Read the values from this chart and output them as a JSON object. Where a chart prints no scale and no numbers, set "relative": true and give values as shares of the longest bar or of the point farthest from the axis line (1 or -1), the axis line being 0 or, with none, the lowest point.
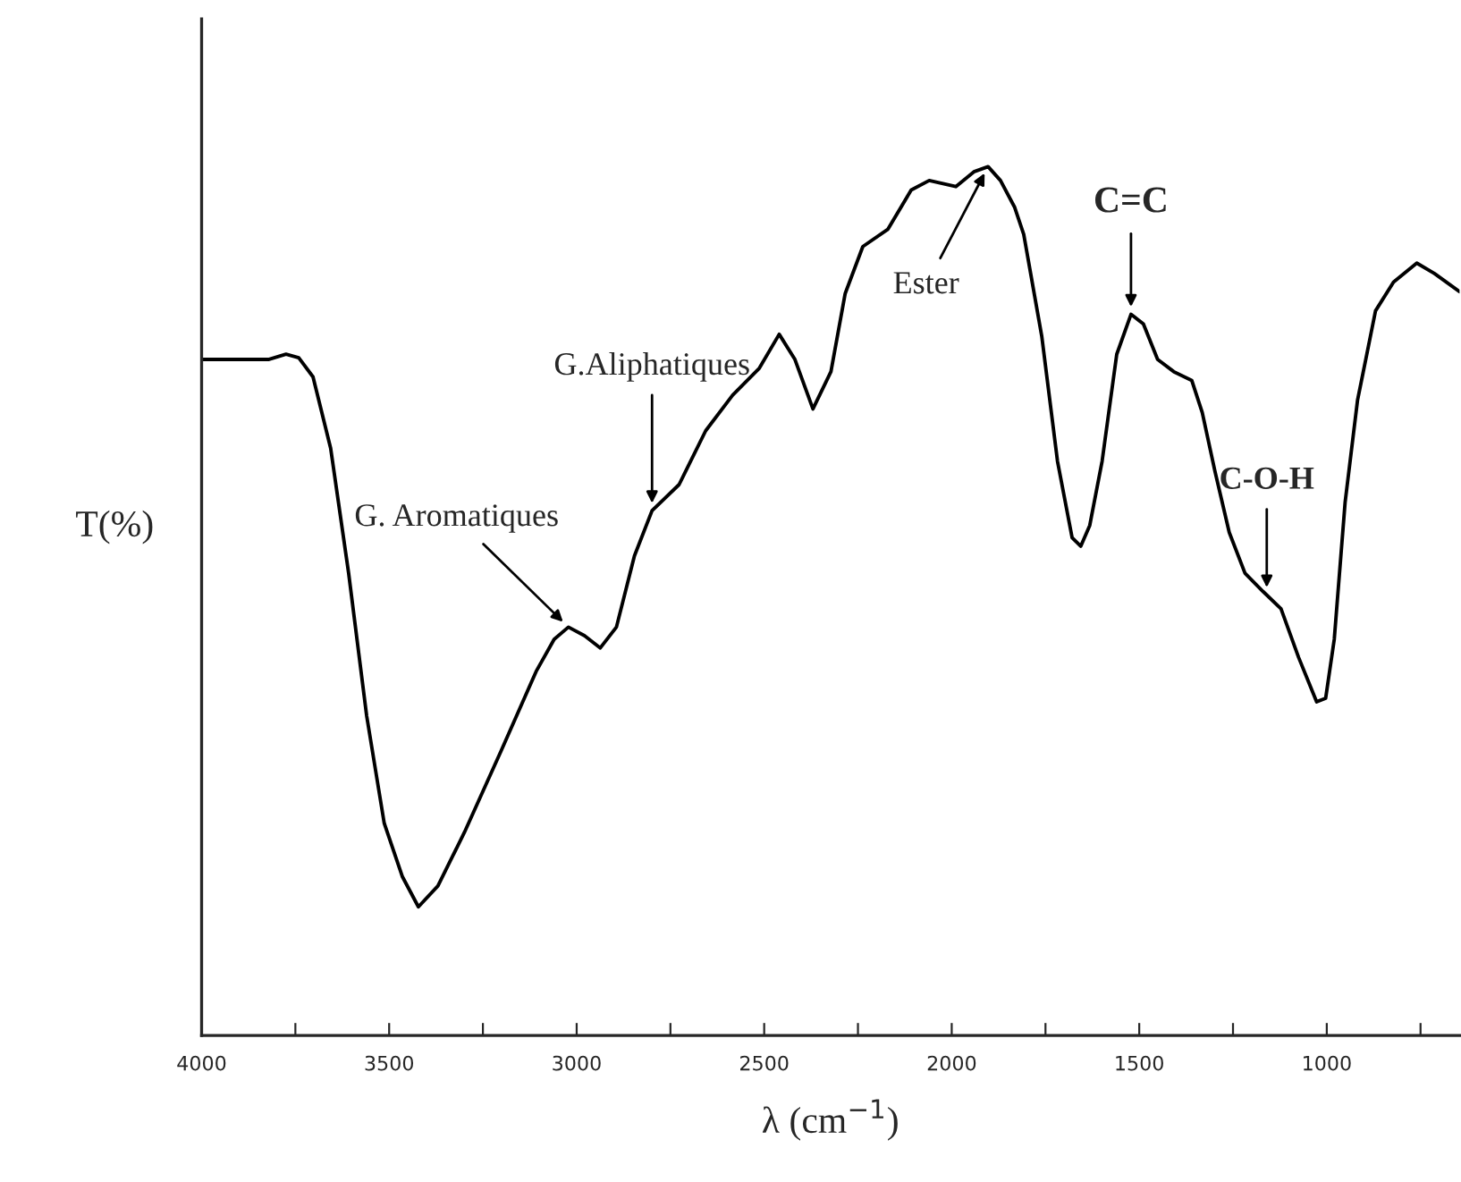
{
  "chart_data": {
    "type": "line",
    "relative": true,
    "xlabel": "λ (cm$^{−1}$)",
    "ylabel": "T(%)",
    "x": [
      4000,
      3822,
      3775,
      3741,
      3703,
      3656,
      3608,
      3560,
      3513,
      3465,
      3422,
      3370,
      3299,
      3203,
      3108,
      3060,
      3022,
      2979,
      2937,
      2894,
      2846,
      2799,
      2727,
      2656,
      2584,
      2513,
      2460,
      2418,
      2370,
      2322,
      2284,
      2237,
      2170,
      2108,
      2060,
      1989,
      1941,
      1903,
      1870,
      1832,
      1808,
      1760,
      1718,
      1679,
      1656,
      1632,
      1599,
      1560,
      1522,
      1489,
      1451,
      1408,
      1360,
      1332,
      1298,
      1260,
      1218,
      1170,
      1122,
      1075,
      1027,
      1003,
      980,
      951,
      918,
      870,
      822,
      760,
      713,
      646
    ],
    "series": [
      {
        "color": "#000000",
        "values": [
          0.778,
          0.778,
          0.784,
          0.78,
          0.758,
          0.676,
          0.532,
          0.368,
          0.244,
          0.183,
          0.148,
          0.172,
          0.234,
          0.326,
          0.419,
          0.456,
          0.47,
          0.46,
          0.446,
          0.47,
          0.552,
          0.604,
          0.634,
          0.696,
          0.737,
          0.768,
          0.807,
          0.778,
          0.721,
          0.764,
          0.854,
          0.908,
          0.928,
          0.973,
          0.984,
          0.977,
          0.994,
          1.0,
          0.984,
          0.953,
          0.922,
          0.805,
          0.661,
          0.573,
          0.563,
          0.587,
          0.661,
          0.784,
          0.83,
          0.819,
          0.778,
          0.764,
          0.754,
          0.717,
          0.649,
          0.579,
          0.532,
          0.511,
          0.491,
          0.435,
          0.384,
          0.388,
          0.456,
          0.614,
          0.731,
          0.834,
          0.867,
          0.889,
          0.877,
          0.856
        ]
      }
    ],
    "xlim": [
      4000,
      646
    ],
    "xticks": [
      4000,
      {
        "value": 3750,
        "label": null
      },
      3500,
      {
        "value": 3250,
        "label": null
      },
      3000,
      {
        "value": 2750,
        "label": null
      },
      2500,
      {
        "value": 2250,
        "label": null
      },
      2000,
      {
        "value": 1750,
        "label": null
      },
      1500,
      {
        "value": 1250,
        "label": null
      },
      1000,
      {
        "value": 750,
        "label": null
      }
    ],
    "annotations": [
      {
        "text": "G. Aromatiques",
        "x": 3022,
        "y": 0.47
      },
      {
        "text": "G.Aliphatiques",
        "x": 2799,
        "y": 0.604
      },
      {
        "text": "Ester",
        "x": 1903,
        "y": 1.0
      },
      {
        "text": "C=C",
        "x": 1522,
        "y": 0.83
      },
      {
        "text": "C-O-H",
        "x": 1160,
        "y": 0.507
      }
    ],
    "grid": false,
    "legend": false,
    "marker": "none",
    "line_style": "solid"
  }
}
